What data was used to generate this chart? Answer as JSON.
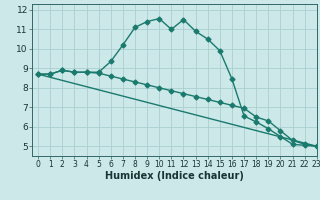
{
  "title": "",
  "xlabel": "Humidex (Indice chaleur)",
  "ylabel": "",
  "bg_color": "#cce8e8",
  "line_color": "#1a7a6e",
  "grid_color": "#aacfcf",
  "xlim": [
    -0.5,
    23
  ],
  "ylim": [
    4.5,
    12.3
  ],
  "xticks": [
    0,
    1,
    2,
    3,
    4,
    5,
    6,
    7,
    8,
    9,
    10,
    11,
    12,
    13,
    14,
    15,
    16,
    17,
    18,
    19,
    20,
    21,
    22,
    23
  ],
  "yticks": [
    5,
    6,
    7,
    8,
    9,
    10,
    11,
    12
  ],
  "curve1_x": [
    0,
    1,
    2,
    3,
    4,
    5,
    6,
    7,
    8,
    9,
    10,
    11,
    12,
    13,
    14,
    15,
    16,
    17,
    18,
    19,
    20,
    21,
    22,
    23
  ],
  "curve1_y": [
    8.7,
    8.7,
    8.9,
    8.8,
    8.8,
    8.8,
    9.35,
    10.2,
    11.1,
    11.4,
    11.55,
    11.0,
    11.5,
    10.9,
    10.5,
    9.9,
    8.45,
    6.55,
    6.25,
    5.9,
    5.5,
    5.1,
    5.05,
    5.0
  ],
  "curve2_x": [
    0,
    1,
    2,
    3,
    4,
    5,
    6,
    7,
    8,
    9,
    10,
    11,
    12,
    13,
    14,
    15,
    16,
    17,
    18,
    19,
    20,
    21,
    22,
    23
  ],
  "curve2_y": [
    8.7,
    8.7,
    8.9,
    8.8,
    8.8,
    8.75,
    8.6,
    8.45,
    8.3,
    8.15,
    8.0,
    7.85,
    7.7,
    7.55,
    7.4,
    7.25,
    7.1,
    6.95,
    6.5,
    6.3,
    5.8,
    5.3,
    5.1,
    5.0
  ],
  "curve3_x": [
    0,
    23
  ],
  "curve3_y": [
    8.7,
    5.0
  ],
  "markersize": 2.5,
  "linewidth": 1.0
}
